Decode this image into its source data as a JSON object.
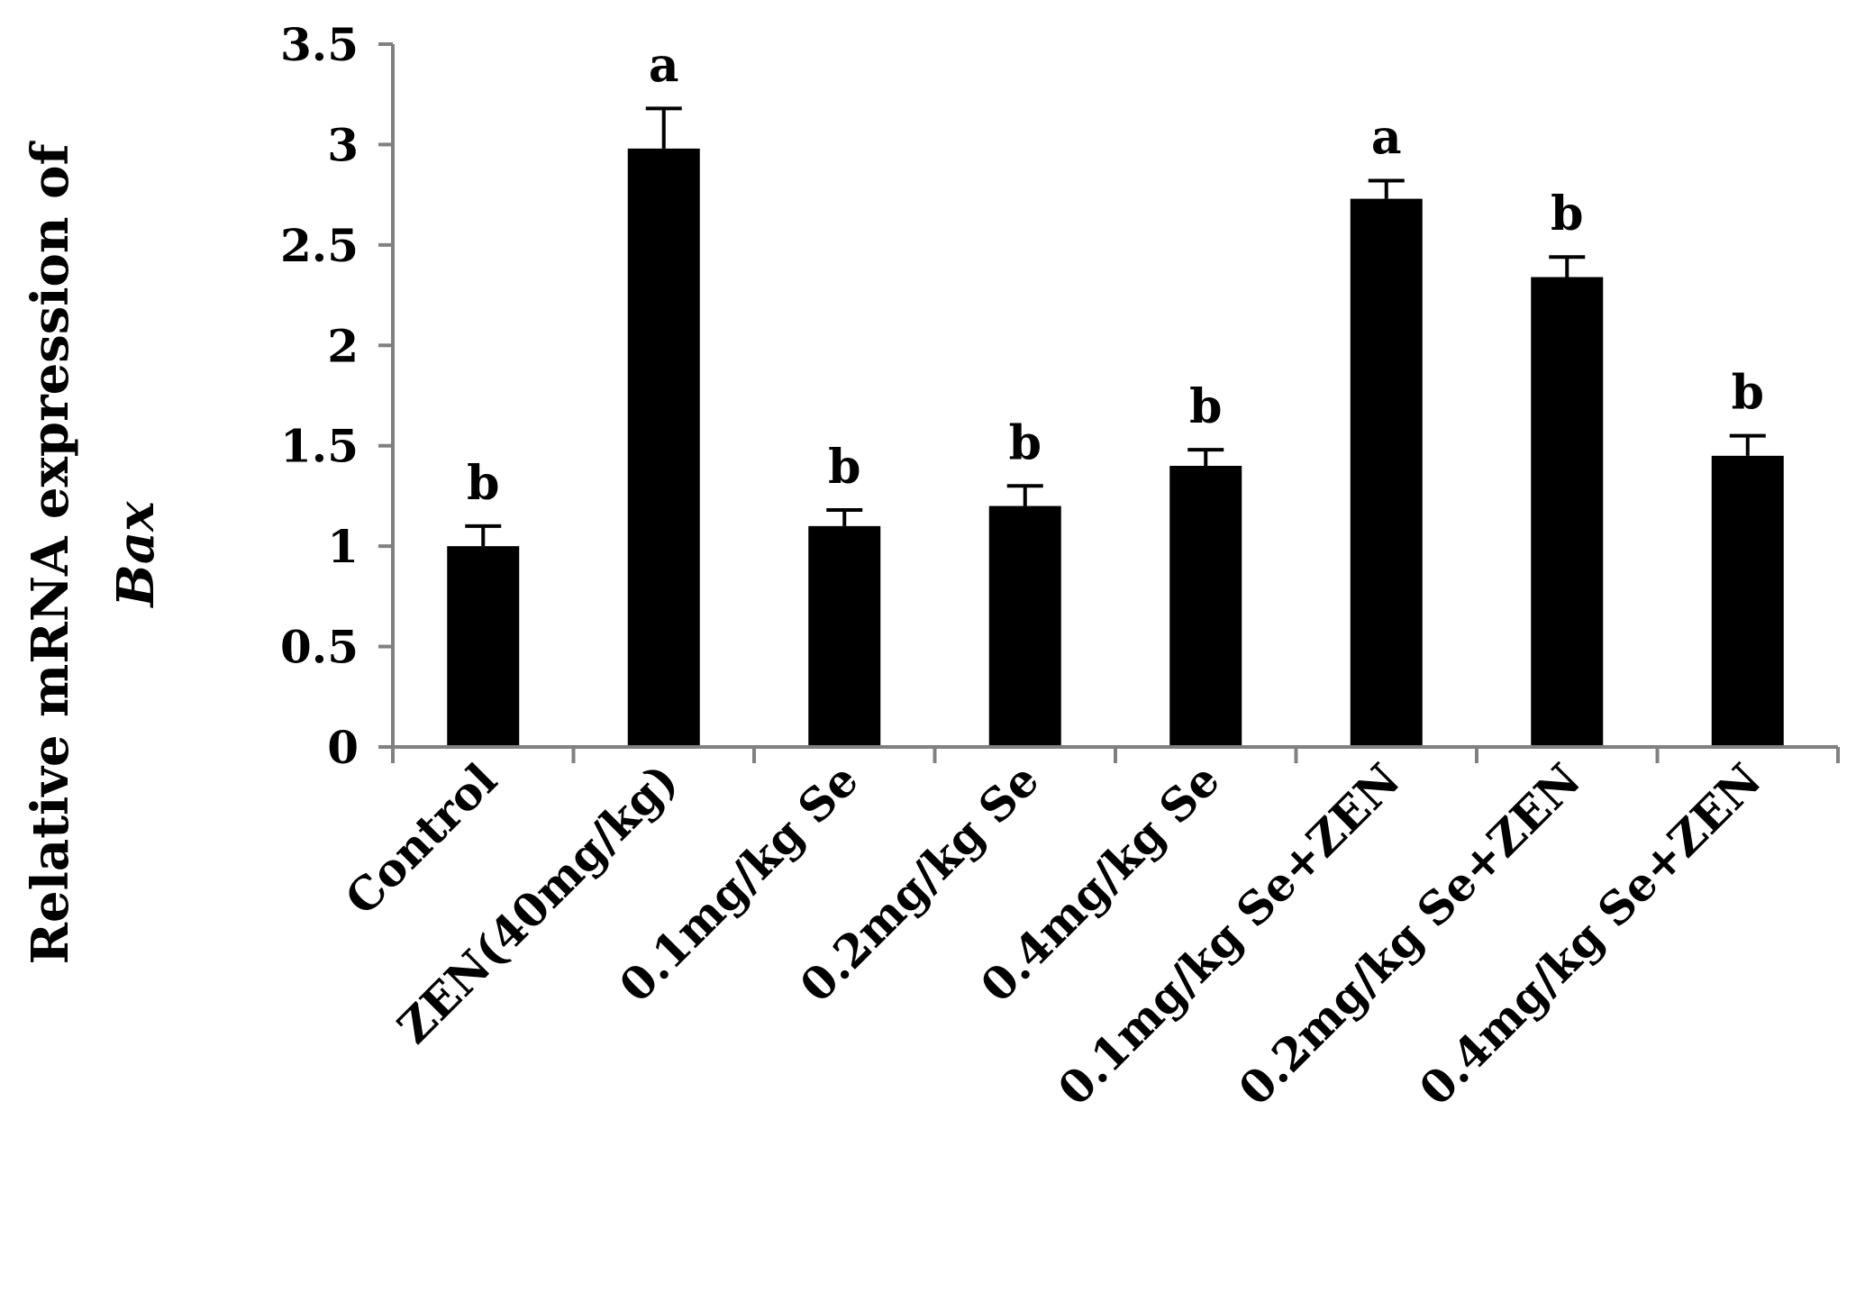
{
  "chart_data": {
    "type": "bar",
    "categories": [
      "Control",
      "ZEN(40mg/kg)",
      "0.1mg/kg Se",
      "0.2mg/kg Se",
      "0.4mg/kg Se",
      "0.1mg/kg Se+ZEN",
      "0.2mg/kg Se+ZEN",
      "0.4mg/kg Se+ZEN"
    ],
    "values": [
      1.0,
      2.98,
      1.1,
      1.2,
      1.4,
      2.73,
      2.34,
      1.45
    ],
    "errors": [
      0.1,
      0.2,
      0.08,
      0.1,
      0.08,
      0.09,
      0.1,
      0.1
    ],
    "significance": [
      "b",
      "a",
      "b",
      "b",
      "b",
      "a",
      "b",
      "b"
    ],
    "ylabel_line1": "Relative mRNA expression of",
    "ylabel_line2": "Bax",
    "ylim": [
      0,
      3.5
    ],
    "yticks": [
      "0",
      "0.5",
      "1",
      "1.5",
      "2",
      "2.5",
      "3",
      "3.5"
    ],
    "bar_color": "#000000",
    "axis_color": "#808080",
    "grid": false
  }
}
